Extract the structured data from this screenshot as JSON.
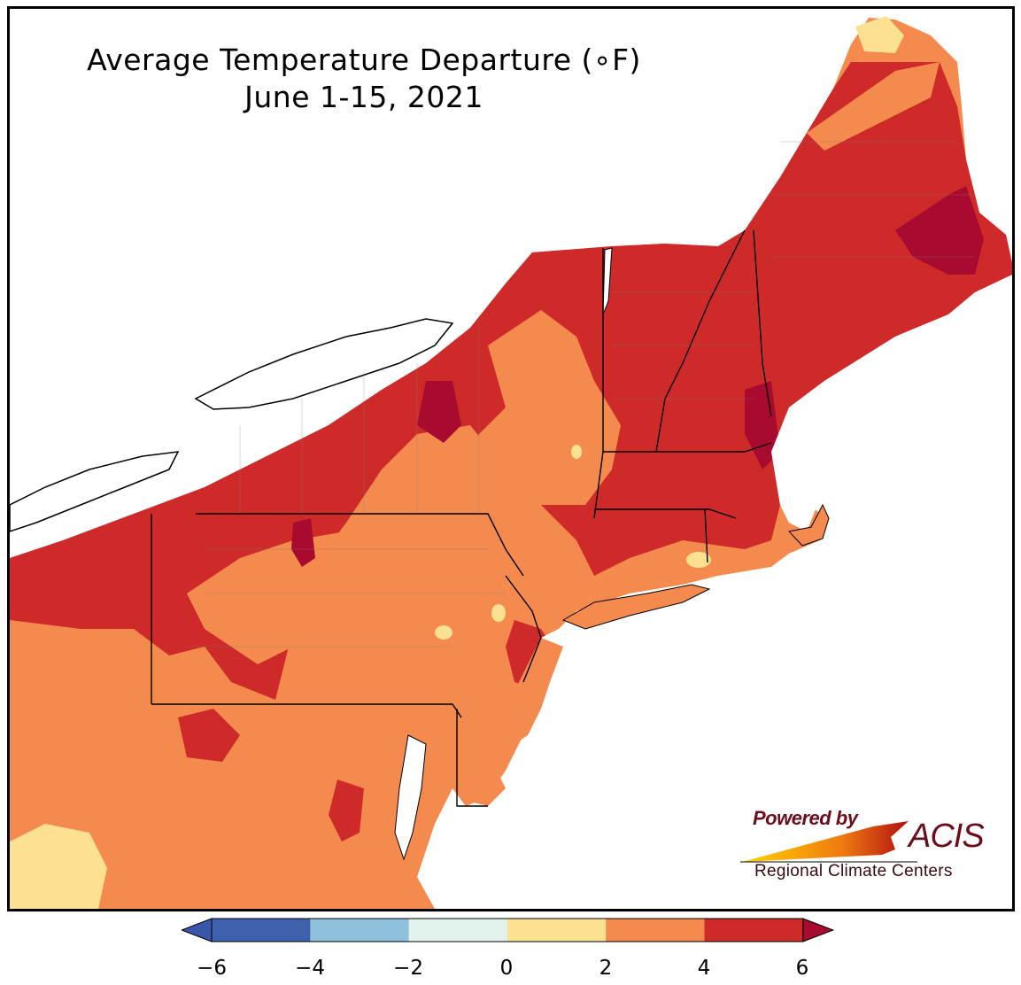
{
  "title": {
    "line1": "Average Temperature Departure (∘F)",
    "line2": "June 1-15, 2021"
  },
  "logo": {
    "powered_by": "Powered by",
    "brand": "ACIS",
    "subtitle": "Regional Climate Centers"
  },
  "legend": {
    "ticks": [
      "−6",
      "−4",
      "−2",
      "0",
      "2",
      "4",
      "6"
    ],
    "bins": [
      {
        "range": "below -6",
        "color": "#3a56a8"
      },
      {
        "range": "-6 to -4",
        "color": "#3f61ad"
      },
      {
        "range": "-4 to -2",
        "color": "#8fc0dc"
      },
      {
        "range": "-2 to 0",
        "color": "#e2f3ee"
      },
      {
        "range": "0 to 2",
        "color": "#fde192"
      },
      {
        "range": "2 to 4",
        "color": "#f48a4e"
      },
      {
        "range": "4 to 6",
        "color": "#cf2a2a"
      },
      {
        "range": "above 6",
        "color": "#a80a30"
      }
    ]
  },
  "colors": {
    "water": "#ffffff",
    "state_border": "#000000",
    "county_border": "#7d7d7d"
  }
}
